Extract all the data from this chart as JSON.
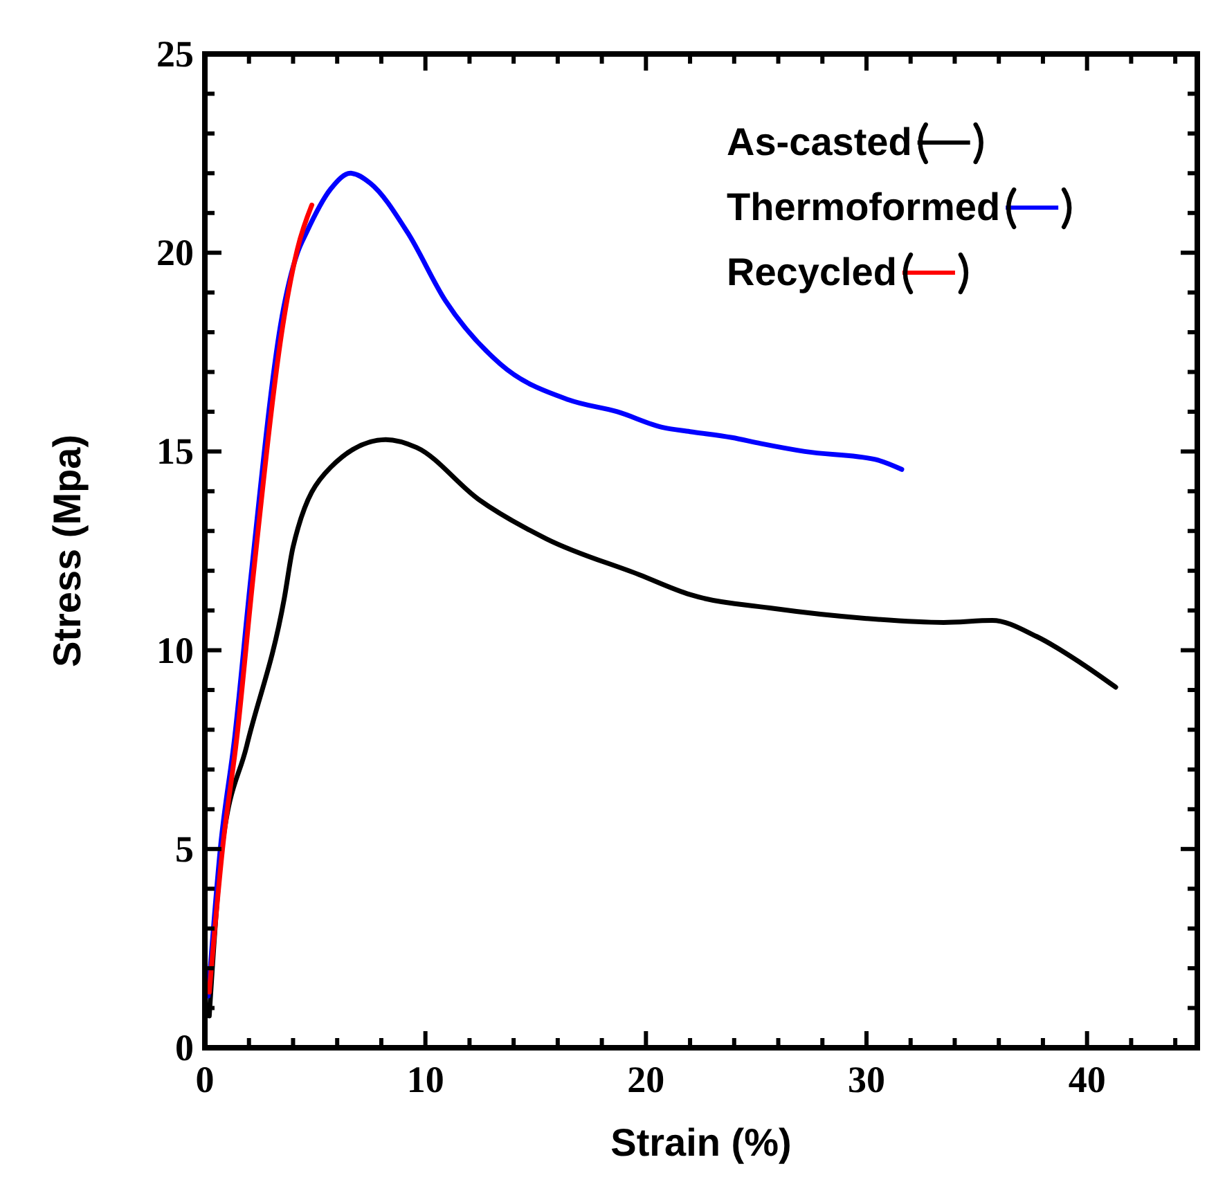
{
  "chart_data": {
    "type": "line",
    "xlabel": "Strain (%)",
    "ylabel": "Stress (Mpa)",
    "xlim": [
      0,
      45
    ],
    "ylim": [
      0,
      25
    ],
    "xticks": [
      0,
      {
        "value": 2,
        "label": null
      },
      {
        "value": 4,
        "label": null
      },
      {
        "value": 6,
        "label": null
      },
      {
        "value": 8,
        "label": null
      },
      10,
      {
        "value": 12,
        "label": null
      },
      {
        "value": 14,
        "label": null
      },
      {
        "value": 16,
        "label": null
      },
      {
        "value": 18,
        "label": null
      },
      20,
      {
        "value": 22,
        "label": null
      },
      {
        "value": 24,
        "label": null
      },
      {
        "value": 26,
        "label": null
      },
      {
        "value": 28,
        "label": null
      },
      30,
      {
        "value": 32,
        "label": null
      },
      {
        "value": 34,
        "label": null
      },
      {
        "value": 36,
        "label": null
      },
      {
        "value": 38,
        "label": null
      },
      40,
      {
        "value": 42,
        "label": null
      },
      {
        "value": 44,
        "label": null
      }
    ],
    "yticks": [
      0,
      {
        "value": 1,
        "label": null
      },
      {
        "value": 2,
        "label": null
      },
      {
        "value": 3,
        "label": null
      },
      {
        "value": 4,
        "label": null
      },
      5,
      {
        "value": 6,
        "label": null
      },
      {
        "value": 7,
        "label": null
      },
      {
        "value": 8,
        "label": null
      },
      {
        "value": 9,
        "label": null
      },
      10,
      {
        "value": 11,
        "label": null
      },
      {
        "value": 12,
        "label": null
      },
      {
        "value": 13,
        "label": null
      },
      {
        "value": 14,
        "label": null
      },
      15,
      {
        "value": 16,
        "label": null
      },
      {
        "value": 17,
        "label": null
      },
      {
        "value": 18,
        "label": null
      },
      {
        "value": 19,
        "label": null
      },
      20,
      {
        "value": 21,
        "label": null
      },
      {
        "value": 22,
        "label": null
      },
      {
        "value": 23,
        "label": null
      },
      {
        "value": 24,
        "label": null
      },
      25
    ],
    "grid": false,
    "legend": "top right",
    "marker": "none",
    "line_style": "solid",
    "series": [
      {
        "name": "As-casted",
        "color": "#000000",
        "x": [
          0.2,
          0.75,
          1.9,
          3.6,
          4.0,
          5.7,
          8.2,
          9.6,
          12.4,
          15.5,
          19.7,
          22,
          25.8,
          30,
          33.5,
          35.7,
          37.7,
          39.8,
          41.3
        ],
        "values": [
          0.8,
          4.9,
          7.6,
          11.3,
          12.6,
          14.6,
          15.3,
          15.1,
          13.8,
          12.8,
          11.9,
          11.4,
          11.05,
          10.8,
          10.7,
          10.75,
          10.35,
          9.65,
          9.07
        ]
      },
      {
        "name": "Thermoformed",
        "color": "#0000ff",
        "x": [
          0.15,
          0.7,
          1.35,
          2.1,
          3.5,
          4.2,
          4.6,
          5.7,
          6.6,
          7.5,
          9.2,
          10.9,
          13.4,
          16.5,
          18.7,
          20.8,
          22,
          23.9,
          25.2,
          27.2,
          30.4,
          31.6
        ],
        "values": [
          1.3,
          5,
          7.8,
          11.9,
          18.4,
          20.0,
          20.5,
          21.6,
          22.0,
          21.75,
          20.5,
          18.8,
          17.2,
          16.3,
          16.0,
          15.6,
          15.5,
          15.35,
          15.2,
          15.0,
          14.8,
          14.55
        ]
      },
      {
        "name": "Recycled",
        "color": "#ff0000",
        "x": [
          0.2,
          0.8,
          1.45,
          2.2,
          3.6,
          4.2,
          4.85
        ],
        "values": [
          1.4,
          5.0,
          7.8,
          11.9,
          18.4,
          20.1,
          21.2
        ]
      }
    ]
  }
}
